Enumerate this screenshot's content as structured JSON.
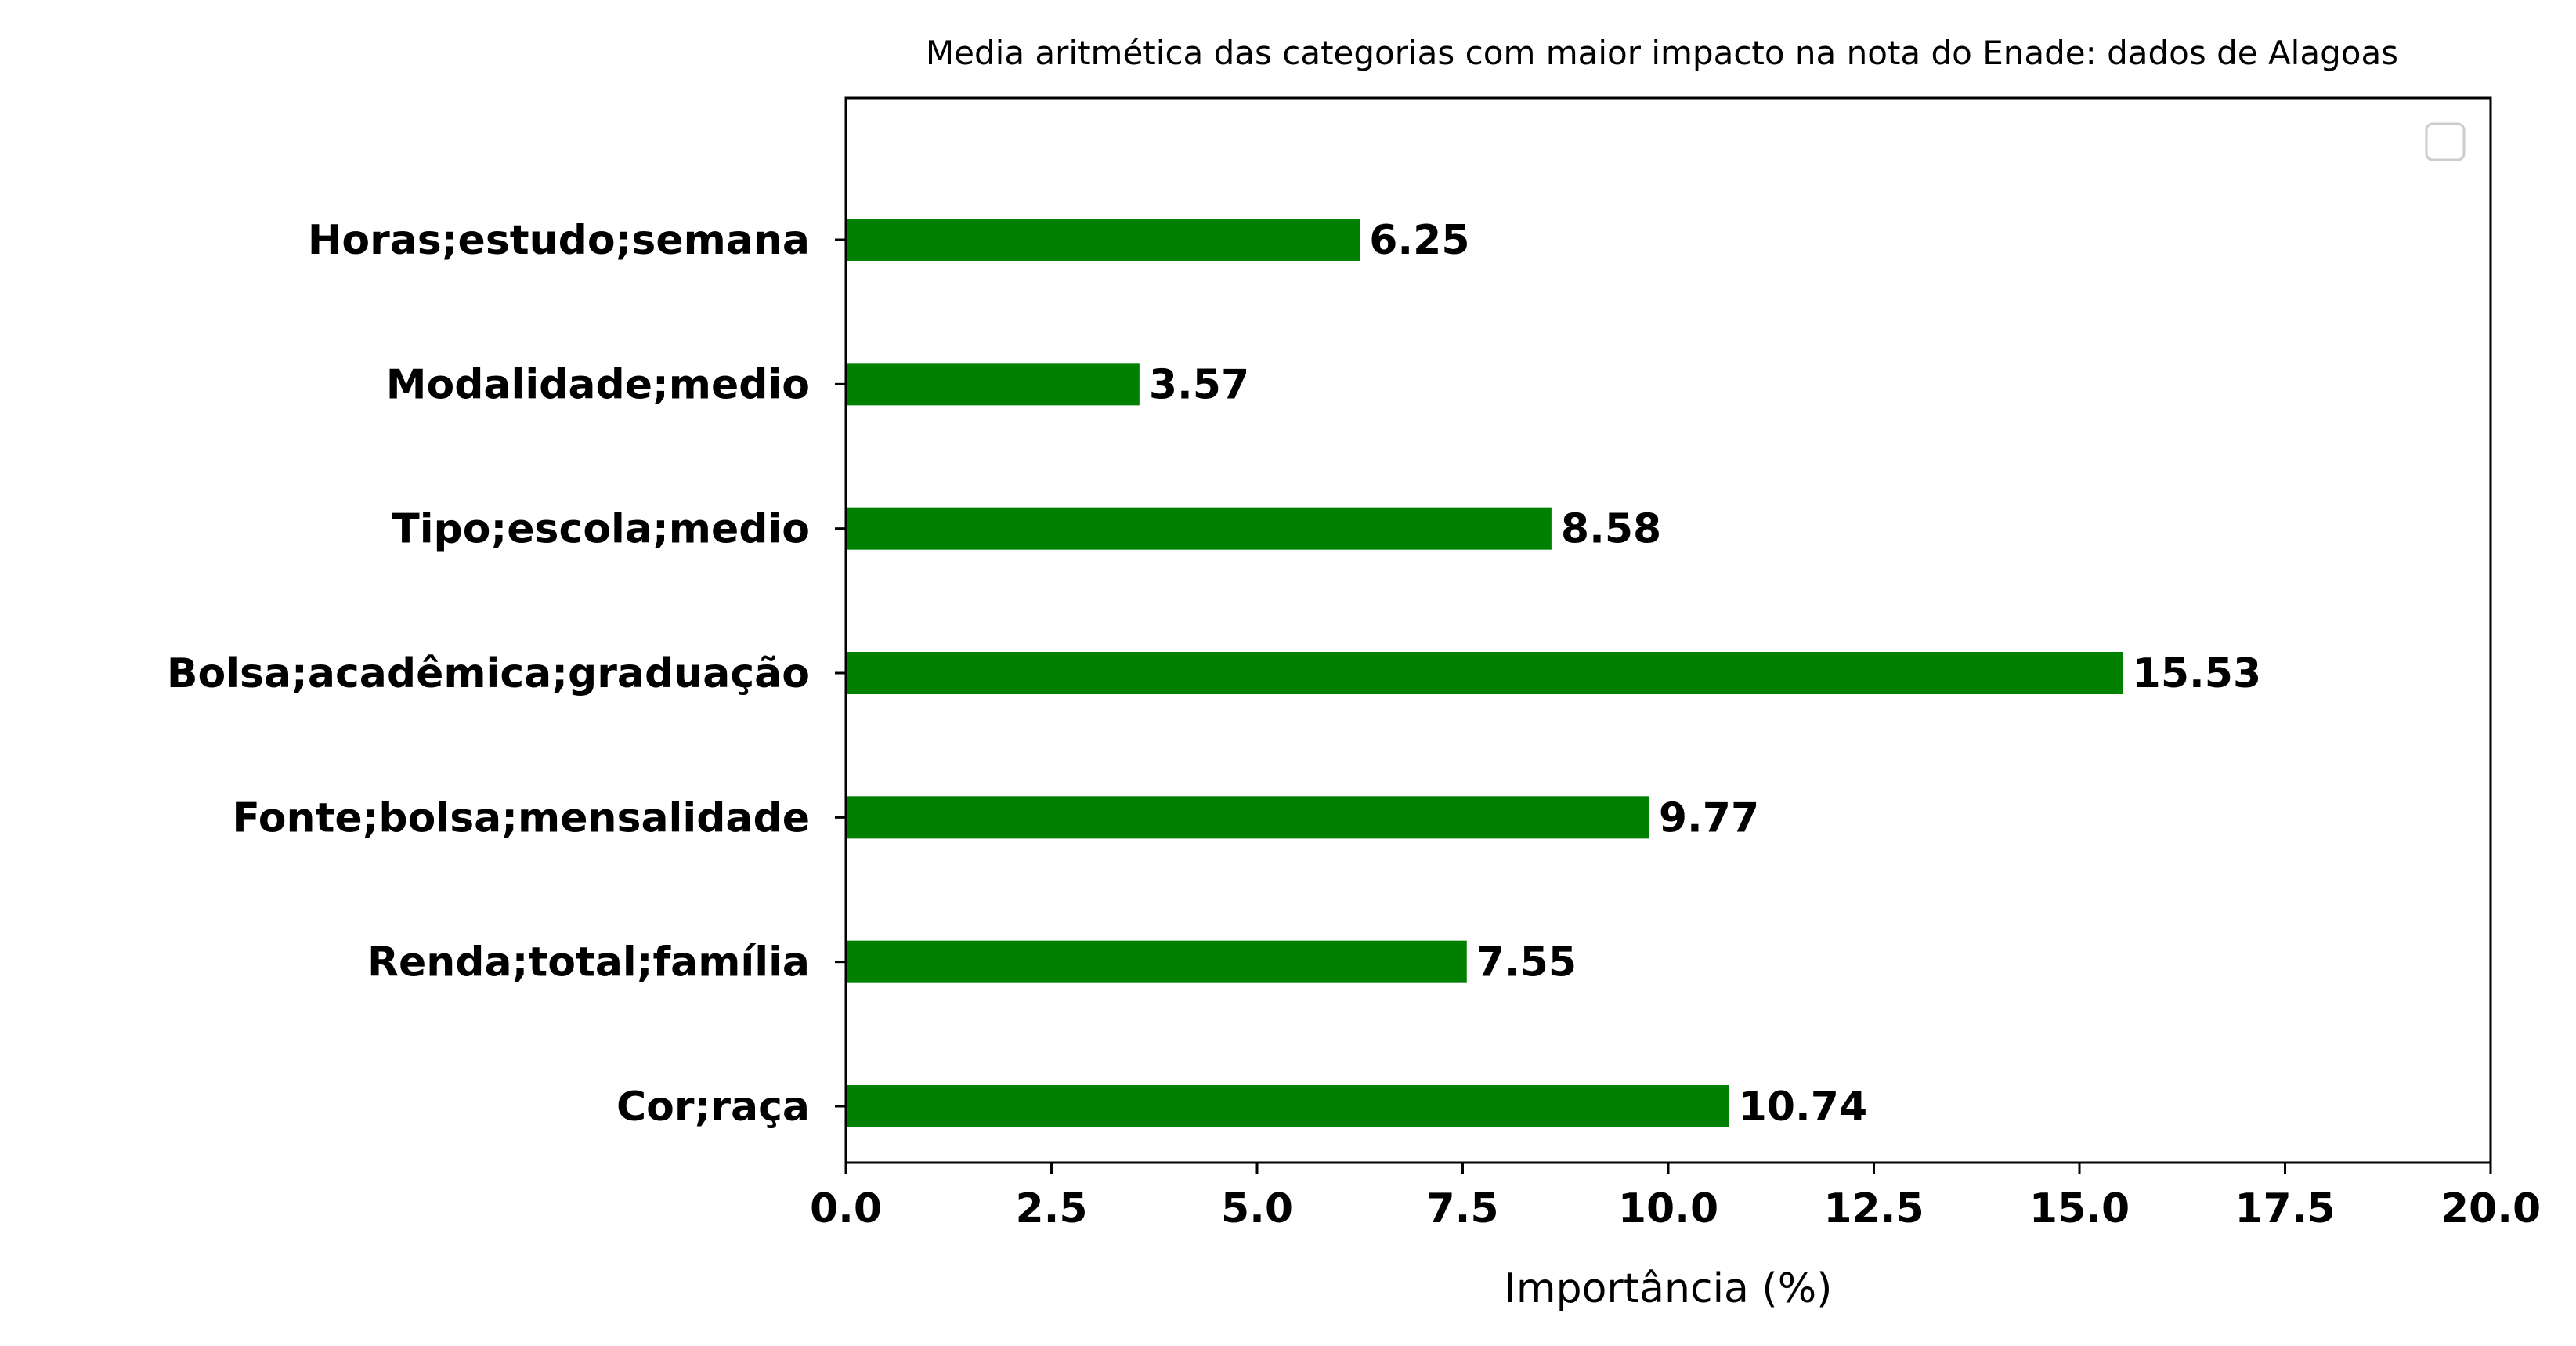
{
  "chart_data": {
    "type": "bar",
    "orientation": "horizontal",
    "title": "Media aritmética das categorias com maior impacto na nota do Enade: dados de Alagoas",
    "xlabel": "Importância (%)",
    "ylabel": "",
    "xlim": [
      0,
      20
    ],
    "xticks": [
      "0.0",
      "2.5",
      "5.0",
      "7.5",
      "10.0",
      "12.5",
      "15.0",
      "17.5",
      "20.0"
    ],
    "xtick_values": [
      0,
      2.5,
      5,
      7.5,
      10,
      12.5,
      15,
      17.5,
      20
    ],
    "categories": [
      "Horas;estudo;semana",
      "Modalidade;medio",
      "Tipo;escola;medio",
      "Bolsa;acadêmica;graduação",
      "Fonte;bolsa;mensalidade",
      "Renda;total;família",
      "Cor;raça"
    ],
    "values": [
      6.25,
      3.57,
      8.58,
      15.53,
      9.77,
      7.55,
      10.74
    ],
    "value_labels": [
      "6.25",
      "3.57",
      "8.58",
      "15.53",
      "9.77",
      "7.55",
      "10.74"
    ],
    "bar_color": "#008000",
    "grid": false,
    "legend": "top-right (empty)"
  }
}
